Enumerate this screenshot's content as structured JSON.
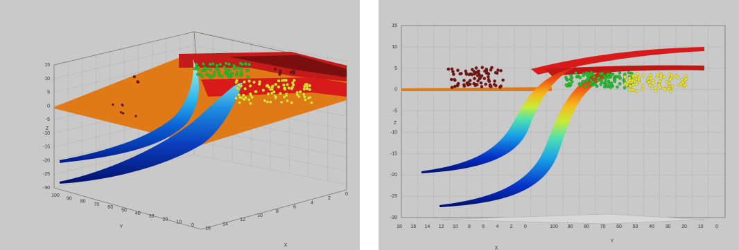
{
  "chart_data": [
    {
      "type": "surface3d",
      "title": "",
      "xlabel": "X",
      "ylabel": "Y",
      "zlabel": "Z",
      "xticks": [
        "0",
        "2",
        "4",
        "6",
        "8",
        "10",
        "12",
        "14",
        "16"
      ],
      "yticks": [
        "100",
        "90",
        "80",
        "70",
        "60",
        "50",
        "40",
        "30",
        "20",
        "10",
        "0"
      ],
      "zticks": [
        "15",
        "10",
        "5",
        "0",
        "-5",
        "-10",
        "-15",
        "-20",
        "-25",
        "-30"
      ],
      "zlim": [
        -30,
        15
      ],
      "grid": true,
      "surfaces": [
        "orange plane",
        "red upper shelf",
        "jet-colored curved sheet (front)",
        "jet-colored curved sheet (back)"
      ],
      "point_clusters": [
        "dark red",
        "green",
        "yellow"
      ],
      "colors": {
        "orange_plane": "#e07a16",
        "red_shelf": "#d81a1a",
        "dark_red_points": "#7a1010",
        "green_points": "#22c12a",
        "yellow_points": "#e8e22a"
      }
    },
    {
      "type": "surface3d",
      "title": "",
      "xlabel": "X",
      "ylabel": "Y",
      "zlabel": "Z",
      "xticks": [
        "18",
        "16",
        "14",
        "12",
        "10",
        "8",
        "6",
        "4",
        "2",
        "0"
      ],
      "yticks": [
        "100",
        "90",
        "80",
        "70",
        "60",
        "50",
        "40",
        "30",
        "20",
        "10",
        "0"
      ],
      "zticks": [
        "15",
        "10",
        "5",
        "0",
        "-5",
        "-10",
        "-15",
        "-20",
        "-25",
        "-30"
      ],
      "zlim": [
        -30,
        15
      ],
      "grid": true,
      "surfaces": [
        "orange plane",
        "red upper sheets",
        "jet-colored curved sheet (left)",
        "jet-colored curved sheet (right)"
      ],
      "point_clusters": [
        "dark red",
        "green",
        "yellow"
      ],
      "colors": {
        "orange_plane": "#e07a16",
        "red_shelf": "#d81a1a",
        "dark_red_points": "#7a1010",
        "green_points": "#22c12a",
        "yellow_points": "#e8e22a"
      }
    }
  ]
}
